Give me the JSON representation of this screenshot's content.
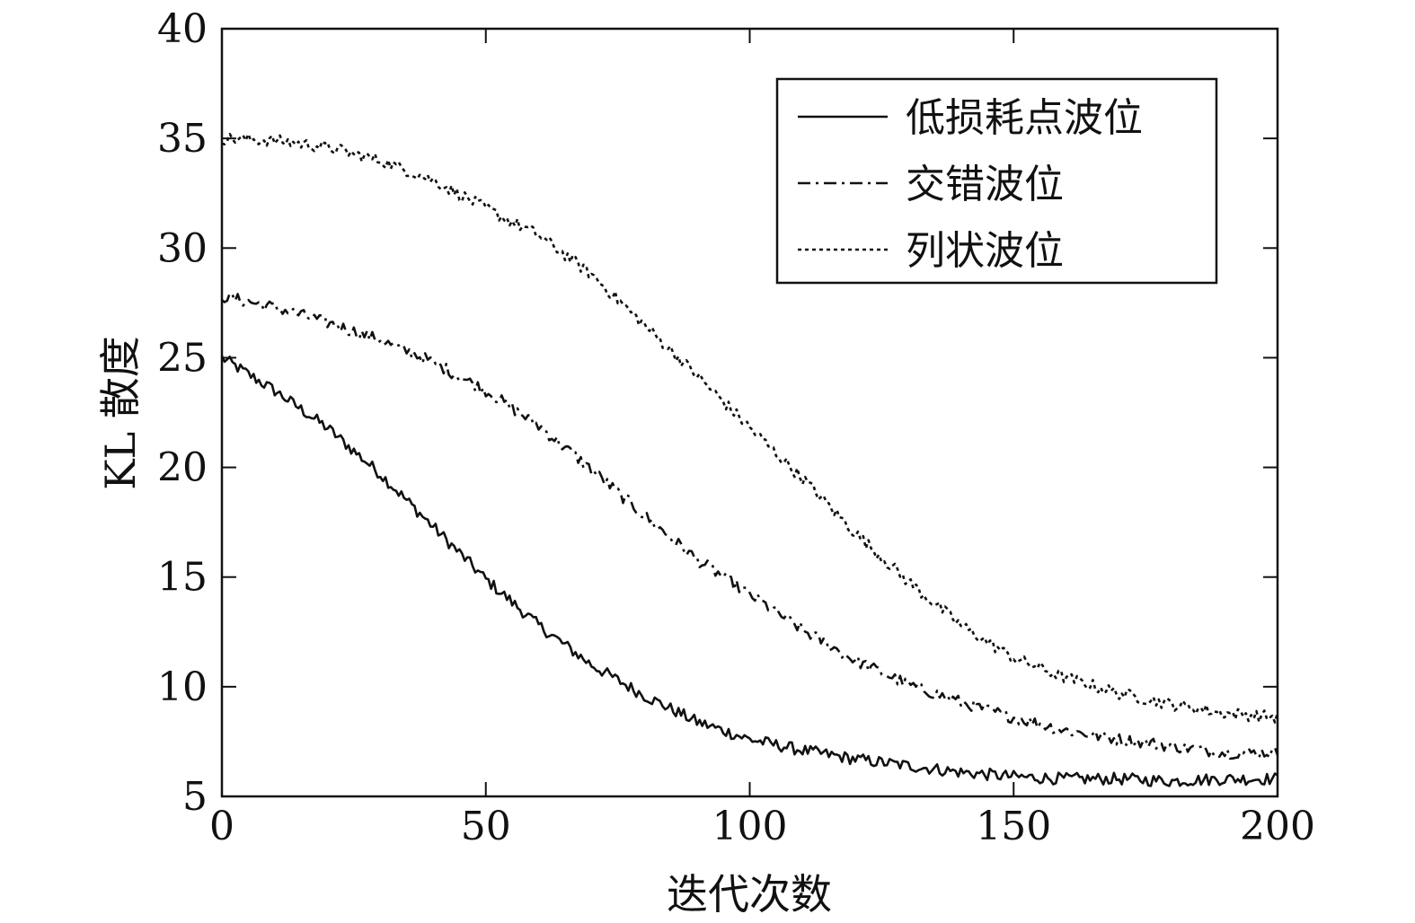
{
  "chart_data": {
    "type": "line",
    "xlabel": "迭代次数",
    "ylabel": "KL 散度",
    "xlim": [
      0,
      200
    ],
    "ylim": [
      5,
      40
    ],
    "xticks": [
      0,
      50,
      100,
      150,
      200
    ],
    "yticks": [
      5,
      10,
      15,
      20,
      25,
      30,
      35,
      40
    ],
    "grid": false,
    "legend_position": "top-right",
    "series": [
      {
        "name": "低损耗点波位",
        "style": "solid",
        "x": [
          0,
          10,
          20,
          30,
          40,
          50,
          60,
          70,
          80,
          90,
          100,
          110,
          120,
          130,
          140,
          150,
          160,
          170,
          180,
          190,
          200
        ],
        "y": [
          25.0,
          23.5,
          21.8,
          19.7,
          17.3,
          14.9,
          12.8,
          11.0,
          9.6,
          8.4,
          7.6,
          7.1,
          6.7,
          6.4,
          6.1,
          5.9,
          5.8,
          5.8,
          5.7,
          5.8,
          5.8
        ]
      },
      {
        "name": "交错波位",
        "style": "dashdot",
        "x": [
          0,
          10,
          20,
          30,
          40,
          50,
          60,
          70,
          80,
          90,
          100,
          110,
          120,
          130,
          140,
          150,
          160,
          170,
          180,
          190,
          200
        ],
        "y": [
          27.8,
          27.3,
          26.6,
          25.8,
          24.8,
          23.5,
          21.9,
          19.9,
          17.8,
          15.8,
          14.2,
          12.6,
          11.2,
          10.1,
          9.3,
          8.6,
          8.0,
          7.6,
          7.3,
          7.0,
          7.0
        ]
      },
      {
        "name": "列状波位",
        "style": "dotted",
        "x": [
          0,
          10,
          20,
          30,
          40,
          50,
          60,
          70,
          80,
          90,
          100,
          110,
          120,
          130,
          140,
          150,
          160,
          170,
          180,
          190,
          200
        ],
        "y": [
          35.0,
          34.9,
          34.6,
          34.0,
          33.1,
          31.8,
          30.6,
          28.8,
          26.5,
          24.2,
          21.8,
          19.5,
          17.0,
          14.8,
          12.8,
          11.3,
          10.4,
          9.7,
          9.2,
          8.8,
          8.6
        ]
      }
    ]
  }
}
